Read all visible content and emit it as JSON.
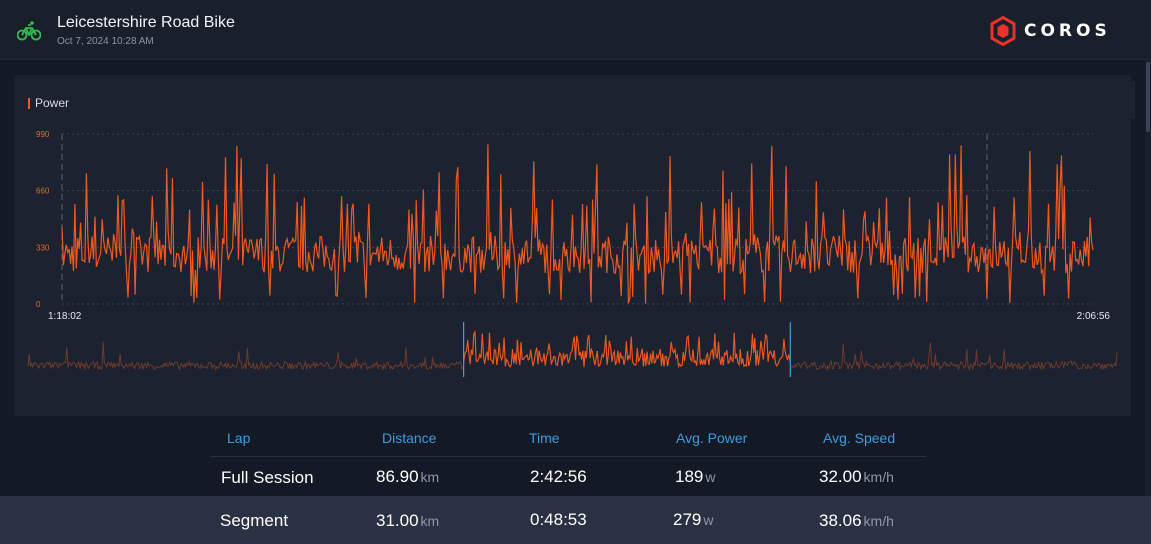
{
  "header": {
    "activity_icon": "bike-icon",
    "title": "Leicestershire Road Bike",
    "datetime": "Oct 7, 2024 10:28 AM",
    "logo_text": "COROS",
    "logo_icon": "coros-hexagon-icon"
  },
  "colors": {
    "power": "#f0581e",
    "accent_blue": "#3d9cdc",
    "bike_green": "#2fbf4f",
    "logo_red": "#e8322a"
  },
  "chart": {
    "legend": "Power",
    "y_ticks": [
      "990",
      "660",
      "330",
      "0"
    ],
    "x_start": "1:18:02",
    "x_end": "2:06:56"
  },
  "chart_data": {
    "type": "line",
    "title": "",
    "series": [
      {
        "name": "Power"
      }
    ],
    "ylim": [
      0,
      990
    ],
    "y_ticks": [
      0,
      330,
      660,
      990
    ],
    "x_range": [
      "1:18:02",
      "2:06:56"
    ],
    "overview_selection_fraction": [
      0.4,
      0.7
    ],
    "grid": true
  },
  "table": {
    "headers": [
      "Lap",
      "Distance",
      "Time",
      "Avg. Power",
      "Avg. Speed"
    ],
    "rows": [
      {
        "lap": "Full Session",
        "distance": "86.90",
        "distance_unit": "km",
        "time": "2:42:56",
        "power": "189",
        "power_unit": "w",
        "speed": "32.00",
        "speed_unit": "km/h"
      },
      {
        "lap": "Segment",
        "distance": "31.00",
        "distance_unit": "km",
        "time": "0:48:53",
        "power": "279",
        "power_unit": "w",
        "speed": "38.06",
        "speed_unit": "km/h"
      }
    ]
  }
}
